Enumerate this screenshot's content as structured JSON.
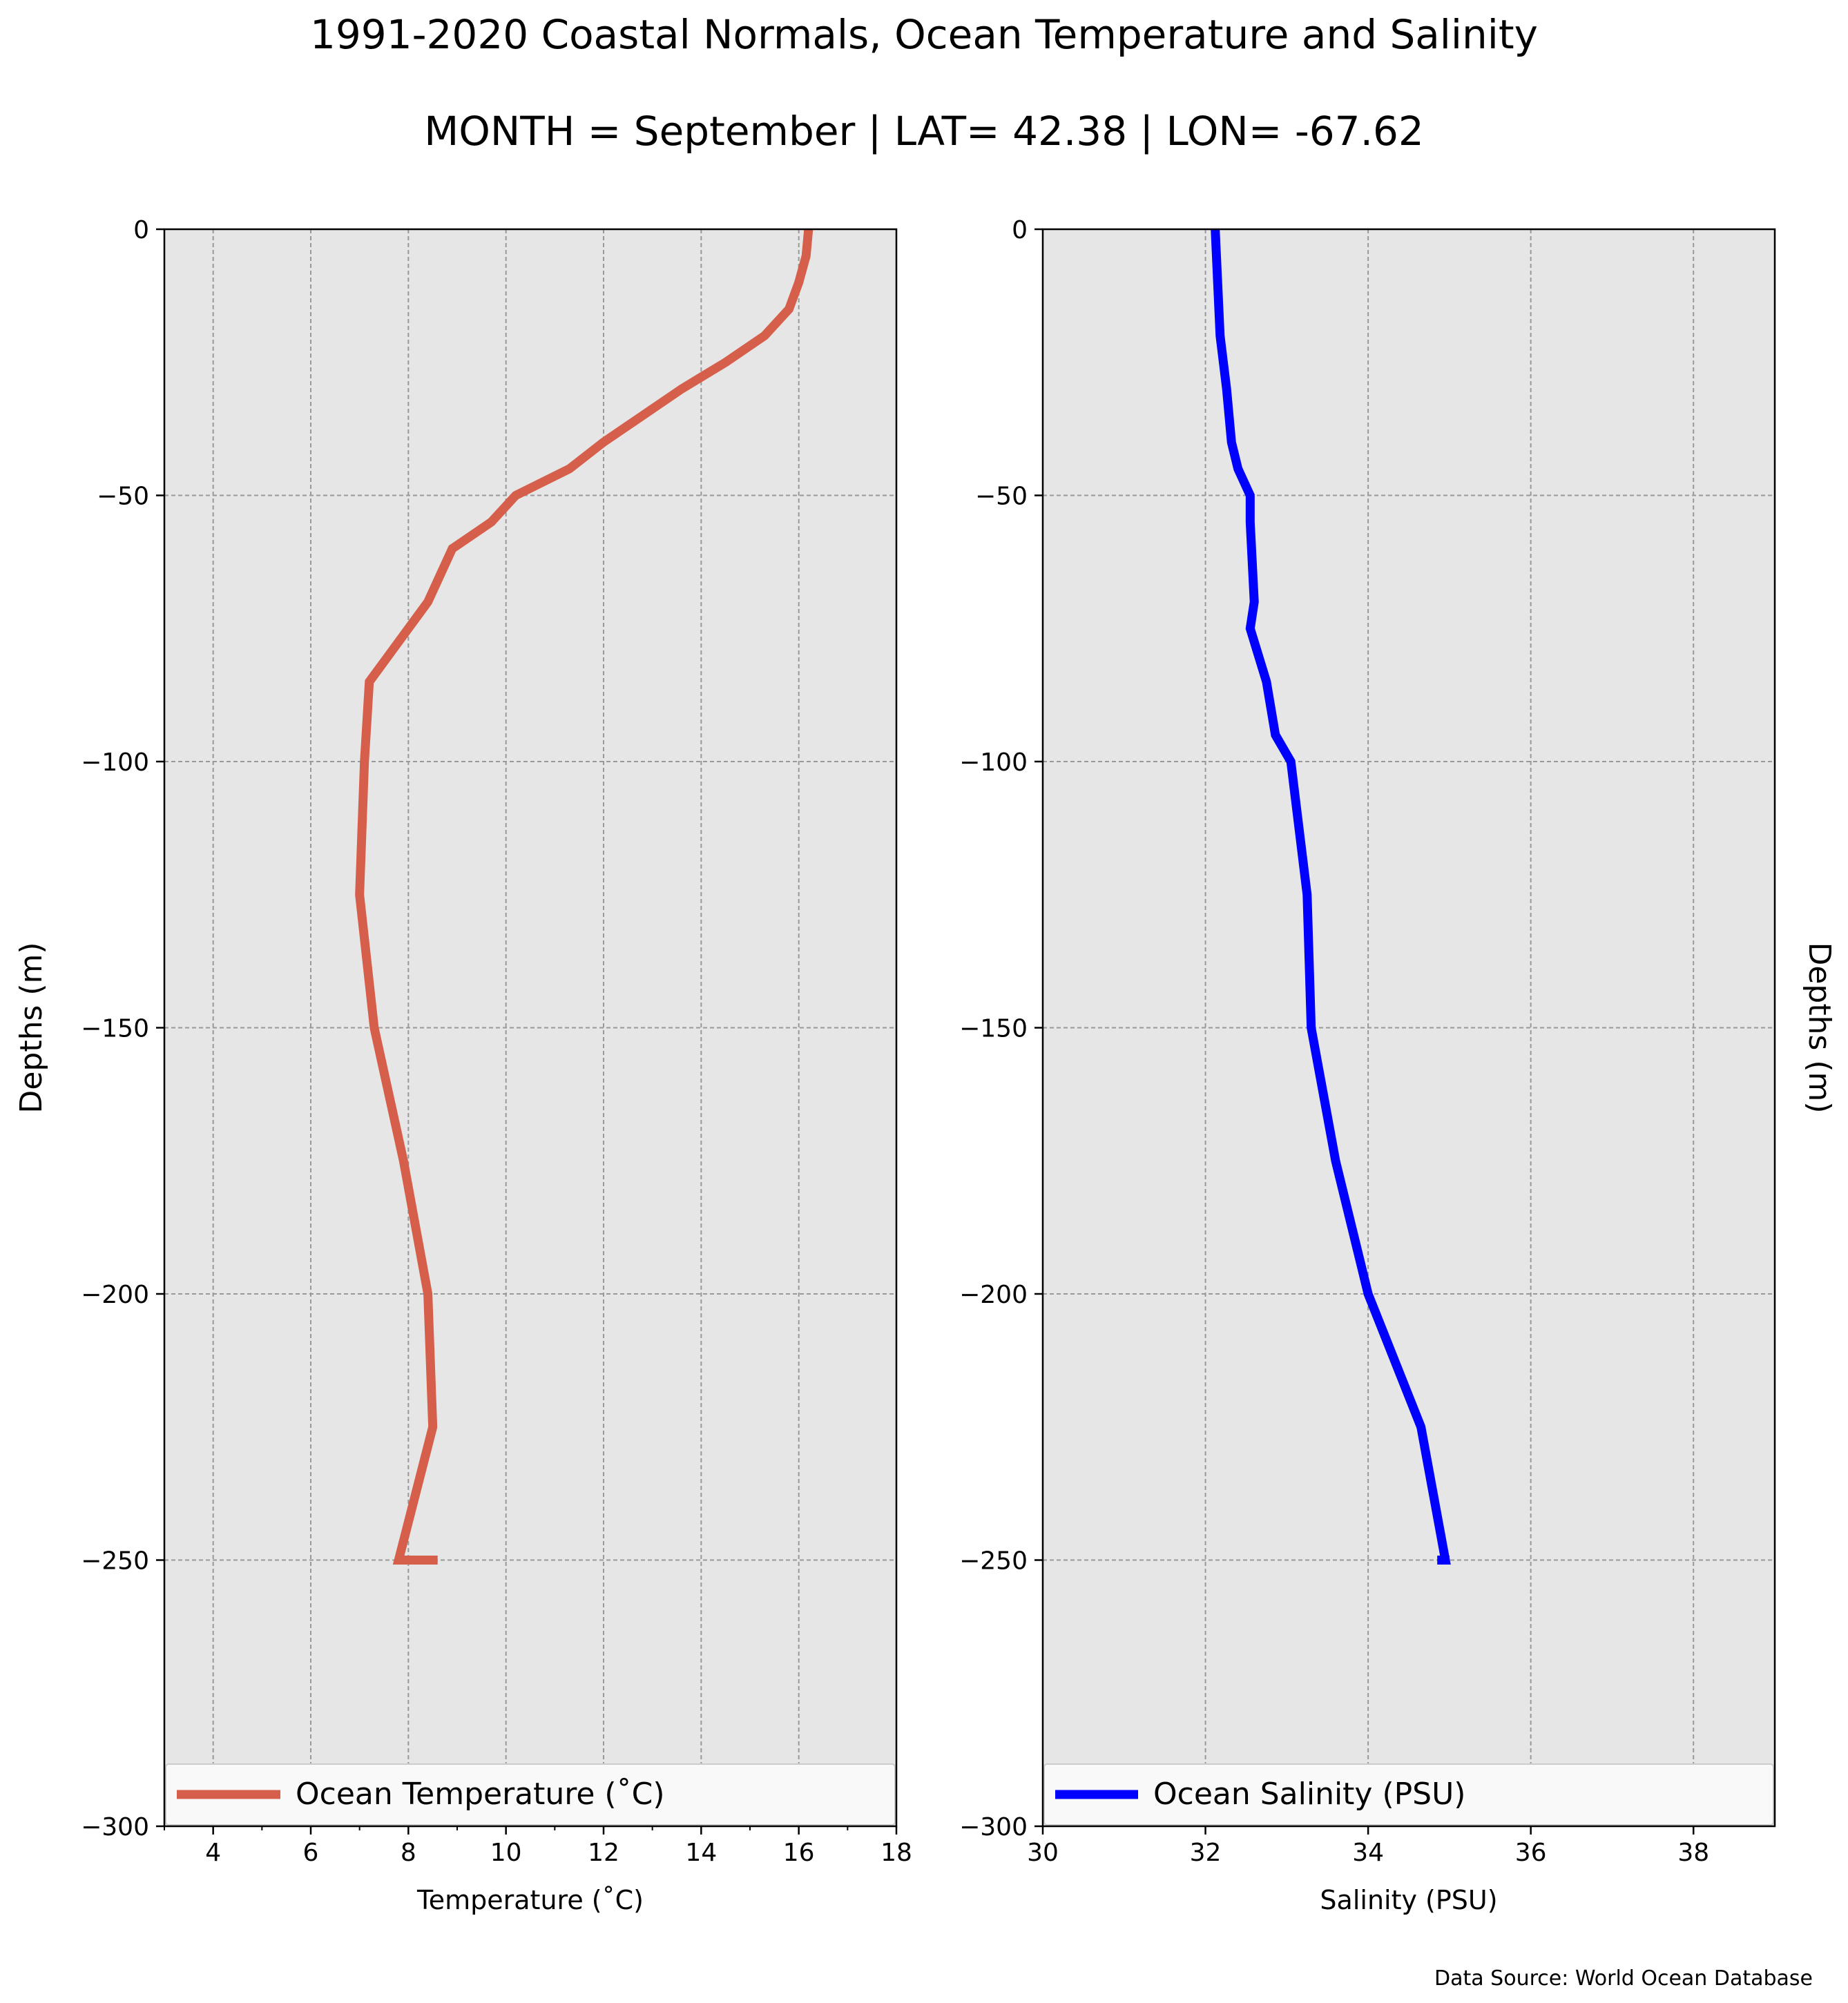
{
  "figure": {
    "title": "1991-2020 Coastal Normals, Ocean Temperature and Salinity",
    "subtitle": "MONTH = September | LAT= 42.38 | LON= -67.62",
    "source_note": "Data Source: World Ocean Database"
  },
  "colors": {
    "temperature_line": "#d65f4b",
    "salinity_line": "#0000ff",
    "axes_background": "#e6e6e6",
    "grid": "#999999"
  },
  "chart_data": [
    {
      "type": "line",
      "xlabel": "Temperature ($^\\circ$C)",
      "xlabel_display": "Temperature (˚C)",
      "ylabel": "Depths (m)",
      "xlim": [
        3,
        18
      ],
      "ylim": [
        -300,
        0
      ],
      "xticks": [
        4,
        6,
        8,
        10,
        12,
        14,
        16,
        18
      ],
      "xtick_labels": [
        "4",
        "6",
        "8",
        "10",
        "12",
        "14",
        "16",
        "18"
      ],
      "yticks": [
        0,
        -50,
        -100,
        -150,
        -200,
        -250,
        -300
      ],
      "ytick_labels": [
        "0",
        "−50",
        "−100",
        "−150",
        "−200",
        "−250",
        "−300"
      ],
      "grid": true,
      "legend_position": "lower center",
      "series": [
        {
          "name": "Ocean Temperature (˚C)",
          "x": [
            16.2,
            16.15,
            16.0,
            15.8,
            15.3,
            14.5,
            13.6,
            12.8,
            12.0,
            11.3,
            10.2,
            9.7,
            8.9,
            8.4,
            7.6,
            7.2,
            7.1,
            7.0,
            7.3,
            7.9,
            8.4,
            8.5,
            7.8,
            8.6
          ],
          "y": [
            0,
            -5,
            -10,
            -15,
            -20,
            -25,
            -30,
            -35,
            -40,
            -45,
            -50,
            -55,
            -60,
            -70,
            -80,
            -85,
            -100,
            -125,
            -150,
            -175,
            -200,
            -225,
            -250,
            -250
          ]
        }
      ]
    },
    {
      "type": "line",
      "xlabel": "Salinity (PSU)",
      "ylabel": "Depths (m)",
      "xlim": [
        30,
        39
      ],
      "ylim": [
        -300,
        0
      ],
      "xticks": [
        30,
        32,
        34,
        36,
        38
      ],
      "xtick_labels": [
        "30",
        "32",
        "34",
        "36",
        "38"
      ],
      "yticks": [
        0,
        -50,
        -100,
        -150,
        -200,
        -250,
        -300
      ],
      "ytick_labels": [
        "0",
        "−50",
        "−100",
        "−150",
        "−200",
        "−250",
        "−300"
      ],
      "grid": true,
      "legend_position": "lower center",
      "series": [
        {
          "name": "Ocean Salinity (PSU)",
          "x": [
            32.12,
            32.15,
            32.18,
            32.22,
            32.26,
            32.32,
            32.4,
            32.55,
            32.55,
            32.6,
            32.55,
            32.75,
            32.86,
            33.05,
            33.25,
            33.3,
            33.6,
            34.0,
            34.65,
            34.95,
            34.85,
            35.0
          ],
          "y": [
            0,
            -10,
            -20,
            -25,
            -30,
            -40,
            -45,
            -50,
            -55,
            -70,
            -75,
            -85,
            -95,
            -100,
            -125,
            -150,
            -175,
            -200,
            -225,
            -250,
            -250,
            -250
          ]
        }
      ]
    }
  ]
}
